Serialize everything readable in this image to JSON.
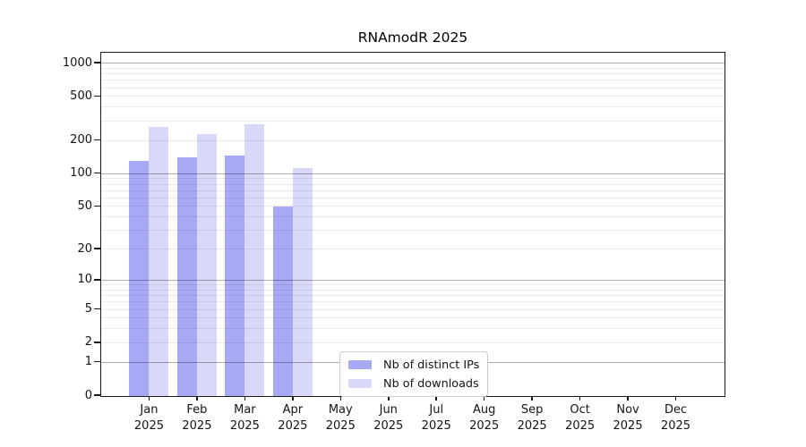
{
  "title": "RNAmodR 2025",
  "chart_data": {
    "type": "bar",
    "title": "RNAmodR 2025",
    "x_axis": {
      "categories": [
        {
          "month": "Jan",
          "year": "2025"
        },
        {
          "month": "Feb",
          "year": "2025"
        },
        {
          "month": "Mar",
          "year": "2025"
        },
        {
          "month": "Apr",
          "year": "2025"
        },
        {
          "month": "May",
          "year": "2025"
        },
        {
          "month": "Jun",
          "year": "2025"
        },
        {
          "month": "Jul",
          "year": "2025"
        },
        {
          "month": "Aug",
          "year": "2025"
        },
        {
          "month": "Sep",
          "year": "2025"
        },
        {
          "month": "Oct",
          "year": "2025"
        },
        {
          "month": "Nov",
          "year": "2025"
        },
        {
          "month": "Dec",
          "year": "2025"
        }
      ]
    },
    "y_axis": {
      "ticks": [
        1000,
        500,
        200,
        100,
        50,
        20,
        10,
        5,
        2,
        1,
        0
      ],
      "scale": "log10(1+x)",
      "major_gridlines": [
        1,
        10,
        100,
        1000
      ],
      "minor_gridlines": "multiples 2-9 of each decade"
    },
    "series": [
      {
        "name": "Nb of distinct IPs",
        "color": "#a8a9f4",
        "values": [
          132,
          142,
          148,
          50,
          null,
          null,
          null,
          null,
          null,
          null,
          null,
          null
        ]
      },
      {
        "name": "Nb of downloads",
        "color": "#d8d9f8",
        "values": [
          270,
          230,
          285,
          114,
          null,
          null,
          null,
          null,
          null,
          null,
          null,
          null
        ]
      }
    ],
    "legend": {
      "position": "bottom-center",
      "items": [
        "Nb of distinct IPs",
        "Nb of downloads"
      ]
    },
    "grid": "on"
  }
}
